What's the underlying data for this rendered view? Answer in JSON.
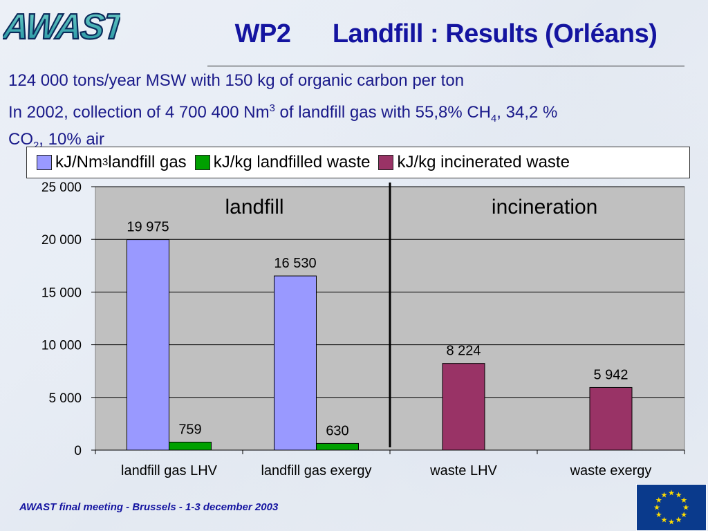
{
  "header": {
    "logo_text": "AWAST",
    "title_part1": "WP2",
    "title_part2": "Landfill : Results (Orléans)"
  },
  "intro": {
    "line1": "124 000 tons/year MSW with 150 kg of organic carbon per ton",
    "line2_a": "In 2002, collection of 4 700 400 Nm",
    "line2_sup": "3",
    "line2_b": " of landfill gas with 55,8% CH",
    "line2_sub": "4",
    "line2_c": ", 34,2 %",
    "line3_a": "CO",
    "line3_sub": "2",
    "line3_b": ", 10% air"
  },
  "legend": {
    "item1_a": "kJ/Nm",
    "item1_sup": "3",
    "item1_b": " landfill gas",
    "item2": "kJ/kg landfilled waste",
    "item3": "kJ/kg incinerated waste"
  },
  "colors": {
    "series1": "#9999ff",
    "series2": "#00a000",
    "series3": "#993366",
    "plot_bg": "#c0c0c0"
  },
  "chart_data": {
    "type": "bar",
    "categories": [
      "landfill gas LHV",
      "landfill gas exergy",
      "waste LHV",
      "waste exergy"
    ],
    "series": [
      {
        "name": "kJ/Nm3 landfill gas",
        "values": [
          19975,
          16530,
          null,
          null
        ]
      },
      {
        "name": "kJ/kg landfilled waste",
        "values": [
          759,
          630,
          null,
          null
        ]
      },
      {
        "name": "kJ/kg incinerated waste",
        "values": [
          null,
          null,
          8224,
          5942
        ]
      }
    ],
    "data_labels": [
      "19 975",
      "16 530",
      "759",
      "630",
      "8 224",
      "5 942"
    ],
    "y_ticks": [
      0,
      5000,
      10000,
      15000,
      20000,
      25000
    ],
    "y_tick_labels": [
      "0",
      "5 000",
      "10 000",
      "15 000",
      "20 000",
      "25 000"
    ],
    "ylim": [
      0,
      25000
    ],
    "grid": true,
    "legend_position": "top",
    "annotations": [
      "landfill",
      "incineration"
    ]
  },
  "footer": {
    "text": "AWAST final meeting - Brussels - 1-3 december 2003"
  }
}
